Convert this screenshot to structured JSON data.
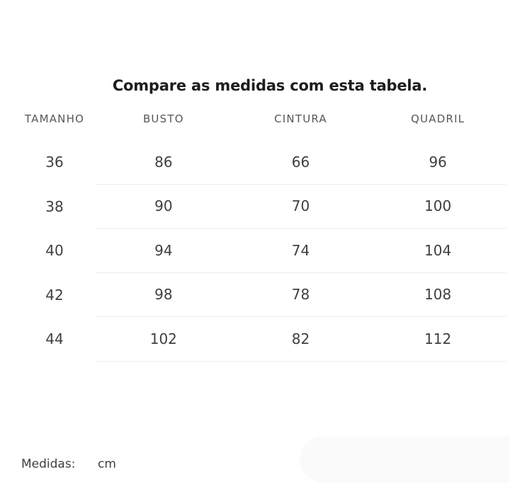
{
  "title": "Compare as medidas com esta tabela.",
  "table": {
    "columns": [
      "TAMANHO",
      "BUSTO",
      "CINTURA",
      "QUADRIL"
    ],
    "rows": [
      [
        "36",
        "86",
        "66",
        "96"
      ],
      [
        "38",
        "90",
        "70",
        "100"
      ],
      [
        "40",
        "94",
        "74",
        "104"
      ],
      [
        "42",
        "98",
        "78",
        "108"
      ],
      [
        "44",
        "102",
        "82",
        "112"
      ]
    ]
  },
  "footer": {
    "label": "Medidas:",
    "unit": "cm"
  },
  "colors": {
    "title_text": "#1d1d1d",
    "header_text": "#54565a",
    "cell_text": "#3e3f41",
    "divider": "#ededed",
    "pill_background": "#fafafa"
  }
}
